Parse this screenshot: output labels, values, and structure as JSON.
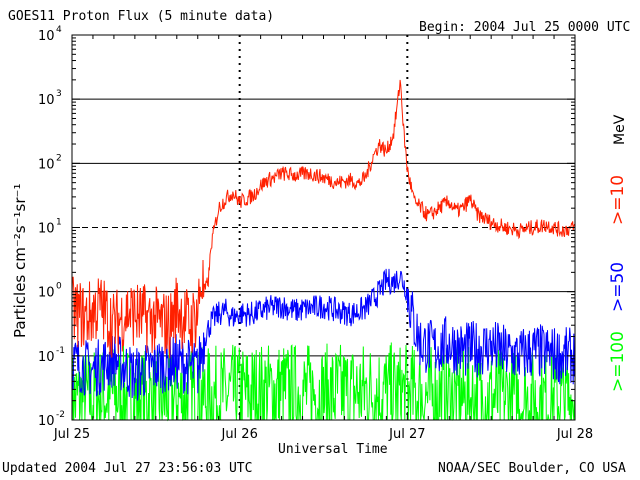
{
  "header": {
    "title": "GOES11 Proton Flux (5 minute data)",
    "begin": "Begin: 2004 Jul 25 0000 UTC"
  },
  "footer": {
    "updated": "Updated 2004 Jul 27 23:56:03 UTC",
    "credit": "NOAA/SEC Boulder, CO USA"
  },
  "colors": {
    "ge10": "#ff2000",
    "ge50": "#0000ff",
    "ge100": "#00ff00"
  },
  "chart_data": {
    "type": "line",
    "title": "GOES11 Proton Flux (5 minute data)",
    "xlabel": "Universal Time",
    "ylabel": "Particles cm⁻²s⁻¹sr⁻¹",
    "yscale": "log",
    "xlim": [
      0,
      72
    ],
    "ylim": [
      0.01,
      10000
    ],
    "x_unit": "hours since 2004 Jul 25 0000 UTC",
    "xticks": [
      {
        "x": 0,
        "label": "Jul 25"
      },
      {
        "x": 24,
        "label": "Jul 26"
      },
      {
        "x": 48,
        "label": "Jul 27"
      },
      {
        "x": 72,
        "label": "Jul 28"
      }
    ],
    "yticks": [
      {
        "v": 0.01,
        "base": "10",
        "exp": "-2"
      },
      {
        "v": 0.1,
        "base": "10",
        "exp": "-1"
      },
      {
        "v": 1,
        "base": "10",
        "exp": "0"
      },
      {
        "v": 10,
        "base": "10",
        "exp": "1"
      },
      {
        "v": 100,
        "base": "10",
        "exp": "2"
      },
      {
        "v": 1000,
        "base": "10",
        "exp": "3"
      },
      {
        "v": 10000,
        "base": "10",
        "exp": "4"
      }
    ],
    "threshold_lines": [
      {
        "value": 1000,
        "style": "solid"
      },
      {
        "value": 100,
        "style": "solid"
      },
      {
        "value": 10,
        "style": "dashed"
      },
      {
        "value": 1,
        "style": "solid"
      },
      {
        "value": 0.1,
        "style": "solid"
      }
    ],
    "day_markers": [
      24,
      48
    ],
    "energy_label": "MeV",
    "series": [
      {
        "name": ">=10",
        "color": "#ff2000",
        "x": [
          0,
          2,
          4,
          6,
          8,
          10,
          12,
          14,
          15,
          16,
          17,
          18,
          18.5,
          19,
          19.5,
          20,
          21,
          22,
          23,
          24,
          25,
          26,
          27,
          28,
          29,
          30,
          32,
          34,
          36,
          38,
          40,
          41,
          42,
          43,
          44,
          45,
          46,
          46.5,
          47,
          47.5,
          48,
          48.5,
          49,
          50,
          51,
          52,
          53,
          54,
          55,
          56,
          57,
          58,
          59,
          60,
          62,
          64,
          66,
          68,
          70,
          72
        ],
        "values": [
          0.5,
          0.4,
          0.6,
          0.3,
          0.5,
          0.4,
          0.35,
          0.3,
          0.6,
          0.4,
          0.3,
          0.5,
          1.5,
          1.0,
          1.5,
          6,
          20,
          28,
          35,
          25,
          28,
          32,
          45,
          55,
          60,
          70,
          65,
          70,
          60,
          50,
          55,
          48,
          60,
          120,
          200,
          150,
          280,
          700,
          2000,
          300,
          80,
          45,
          25,
          20,
          15,
          18,
          22,
          25,
          18,
          20,
          28,
          16,
          14,
          12,
          10,
          9,
          10,
          11,
          9,
          10
        ]
      },
      {
        "name": ">=50",
        "color": "#0000ff",
        "x": [
          0,
          3,
          6,
          9,
          12,
          15,
          18,
          19,
          20,
          21,
          22,
          23,
          24,
          26,
          28,
          30,
          32,
          34,
          36,
          38,
          40,
          42,
          44,
          45,
          46,
          47,
          48,
          49,
          50,
          52,
          54,
          56,
          58,
          60,
          62,
          64,
          66,
          68,
          70,
          72
        ],
        "values": [
          0.08,
          0.06,
          0.09,
          0.05,
          0.07,
          0.08,
          0.06,
          0.2,
          0.35,
          0.45,
          0.5,
          0.4,
          0.45,
          0.45,
          0.55,
          0.6,
          0.5,
          0.55,
          0.6,
          0.5,
          0.45,
          0.55,
          1.0,
          1.5,
          1.4,
          1.8,
          1.0,
          0.3,
          0.15,
          0.13,
          0.16,
          0.12,
          0.13,
          0.14,
          0.11,
          0.1,
          0.12,
          0.11,
          0.1,
          0.1
        ]
      },
      {
        "name": ">=100",
        "color": "#00ff00",
        "x": [
          0,
          6,
          12,
          18,
          24,
          30,
          36,
          42,
          48,
          54,
          60,
          66,
          72
        ],
        "values": [
          0.02,
          0.025,
          0.02,
          0.022,
          0.025,
          0.028,
          0.025,
          0.028,
          0.025,
          0.022,
          0.022,
          0.02,
          0.02
        ]
      }
    ],
    "legend": ">=10, >=50, >=100 placed vertically on the right"
  }
}
